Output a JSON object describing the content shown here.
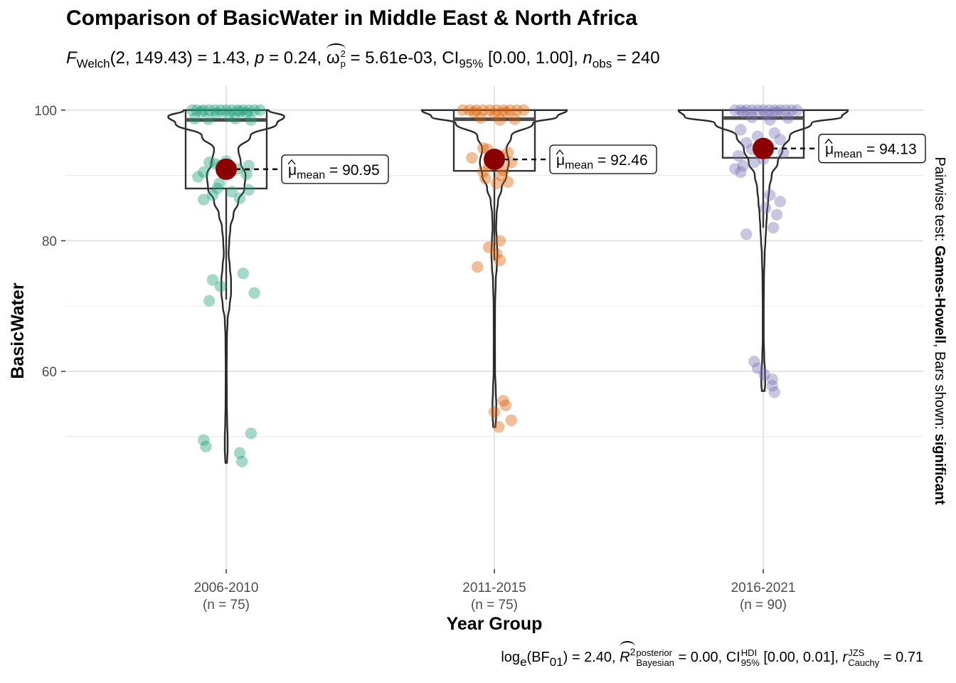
{
  "title": "Comparison of BasicWater in Middle East & North Africa",
  "subtitle": {
    "stat_symbol": "F",
    "stat_sub": "Welch",
    "stat_args": "(2, 149.43)",
    "stat_value": " = 1.43, ",
    "p_symbol": "p",
    "p_value": " = 0.24, ",
    "es_symbol": "ω",
    "es_sup": "2",
    "es_sub": "p",
    "es_value": " = 5.61e-03, CI",
    "ci_sub": "95%",
    "ci_value": " [0.00, 1.00], ",
    "n_symbol": "n",
    "n_sub": "obs",
    "n_value": " = 240"
  },
  "caption": {
    "log_text": "log",
    "log_sub": "e",
    "bf_text": "(BF",
    "bf_sub": "01",
    "bf_value": ") = 2.40, ",
    "r_symbol": "R",
    "r_sup": "2",
    "r_label_top": "posterior",
    "r_label_bottom": "Bayesian",
    "r_value": " = 0.00, CI",
    "ci_top": "HDI",
    "ci_bottom": "95%",
    "ci_value": " [0.00, 0.01], ",
    "cauchy_symbol": "r",
    "cauchy_top": "JZS",
    "cauchy_bottom": "Cauchy",
    "cauchy_value": " = 0.71"
  },
  "side_label": {
    "prefix": "Pairwise test: ",
    "test": "Games-Howell",
    "middle": ", Bars shown: ",
    "shown": "significant"
  },
  "chart_data": {
    "type": "violin-box-scatter",
    "xlabel": "Year Group",
    "ylabel": "BasicWater",
    "ylim": [
      44,
      102
    ],
    "yticks": [
      60,
      80,
      100
    ],
    "grid": true,
    "categories": [
      "2006-2010",
      "2011-2015",
      "2016-2021"
    ],
    "n_labels": [
      "(n = 75)",
      "(n = 75)",
      "(n = 90)"
    ],
    "colors": [
      "#1b9e77",
      "#d95f02",
      "#7570b3"
    ],
    "mean_color": "#8b0000",
    "mean_label_prefix": "μ",
    "mean_label_sub": "mean",
    "groups": [
      {
        "name": "2006-2010",
        "n": 75,
        "mean": 90.95,
        "mean_label": " = 90.95",
        "box": {
          "q1": 88.0,
          "median": 98.5,
          "q3": 100.0,
          "whisker_low": 71.0,
          "whisker_high": 100.0
        },
        "violin": [
          [
            100,
            0.35
          ],
          [
            99,
            0.48
          ],
          [
            98,
            0.42
          ],
          [
            96,
            0.2
          ],
          [
            94,
            0.1
          ],
          [
            92,
            0.12
          ],
          [
            90,
            0.16
          ],
          [
            88,
            0.15
          ],
          [
            86,
            0.1
          ],
          [
            84,
            0.06
          ],
          [
            82,
            0.035
          ],
          [
            80,
            0.025
          ],
          [
            78,
            0.02
          ],
          [
            76,
            0.03
          ],
          [
            74,
            0.04
          ],
          [
            72,
            0.04
          ],
          [
            70,
            0.028
          ],
          [
            68,
            0.012
          ],
          [
            65,
            0.006
          ],
          [
            60,
            0.004
          ],
          [
            55,
            0.005
          ],
          [
            52,
            0.008
          ],
          [
            50,
            0.012
          ],
          [
            48,
            0.012
          ],
          [
            46.5,
            0.008
          ],
          [
            46,
            0.006
          ]
        ],
        "points": [
          [
            100,
            -0.3
          ],
          [
            100,
            -0.26
          ],
          [
            100,
            -0.2
          ],
          [
            100,
            -0.15
          ],
          [
            100,
            -0.1
          ],
          [
            100,
            -0.05
          ],
          [
            100,
            0.0
          ],
          [
            100,
            0.05
          ],
          [
            100,
            0.1
          ],
          [
            100,
            0.15
          ],
          [
            100,
            0.2
          ],
          [
            100,
            0.25
          ],
          [
            100,
            0.3
          ],
          [
            99.8,
            -0.22
          ],
          [
            99.8,
            0.12
          ],
          [
            99.5,
            -0.08
          ],
          [
            99.5,
            0.18
          ],
          [
            99.2,
            0.02
          ],
          [
            98.7,
            -0.28
          ],
          [
            98.7,
            0.08
          ],
          [
            98.6,
            -0.16
          ],
          [
            98.5,
            0.22
          ],
          [
            92.0,
            -0.15
          ],
          [
            91.8,
            -0.1
          ],
          [
            91.5,
            0.2
          ],
          [
            91.5,
            -0.05
          ],
          [
            91.0,
            0.1
          ],
          [
            90.5,
            -0.2
          ],
          [
            90.2,
            0.18
          ],
          [
            89.8,
            -0.25
          ],
          [
            87.8,
            0.2
          ],
          [
            88.0,
            -0.08
          ],
          [
            87.5,
            0.05
          ],
          [
            87.0,
            -0.12
          ],
          [
            86.5,
            0.12
          ],
          [
            86.3,
            -0.2
          ],
          [
            92.2,
            0.0
          ],
          [
            88.8,
            -0.06
          ],
          [
            75.0,
            0.15
          ],
          [
            74.0,
            -0.12
          ],
          [
            73.0,
            -0.05
          ],
          [
            72.0,
            0.25
          ],
          [
            70.8,
            -0.15
          ],
          [
            49.5,
            -0.2
          ],
          [
            48.5,
            -0.18
          ],
          [
            47.5,
            0.12
          ],
          [
            46.2,
            0.14
          ],
          [
            50.5,
            0.22
          ]
        ]
      },
      {
        "name": "2011-2015",
        "n": 75,
        "mean": 92.46,
        "mean_label": " = 92.46",
        "box": {
          "q1": 90.7,
          "median": 98.6,
          "q3": 100.0,
          "whisker_low": 77.0,
          "whisker_high": 100.0
        },
        "violin": [
          [
            100,
            0.6
          ],
          [
            99,
            0.52
          ],
          [
            98,
            0.32
          ],
          [
            96,
            0.14
          ],
          [
            94,
            0.1
          ],
          [
            92,
            0.12
          ],
          [
            90,
            0.1
          ],
          [
            88,
            0.06
          ],
          [
            86,
            0.03
          ],
          [
            84,
            0.018
          ],
          [
            82,
            0.015
          ],
          [
            80,
            0.02
          ],
          [
            78,
            0.025
          ],
          [
            76,
            0.02
          ],
          [
            74,
            0.012
          ],
          [
            70,
            0.006
          ],
          [
            65,
            0.005
          ],
          [
            60,
            0.006
          ],
          [
            57,
            0.012
          ],
          [
            55,
            0.016
          ],
          [
            53,
            0.014
          ],
          [
            51.5,
            0.01
          ]
        ],
        "points": [
          [
            100,
            -0.28
          ],
          [
            100,
            -0.22
          ],
          [
            100,
            -0.16
          ],
          [
            100,
            -0.1
          ],
          [
            100,
            -0.04
          ],
          [
            100,
            0.02
          ],
          [
            100,
            0.08
          ],
          [
            100,
            0.14
          ],
          [
            100,
            0.2
          ],
          [
            100,
            0.26
          ],
          [
            99.7,
            -0.18
          ],
          [
            99.7,
            0.1
          ],
          [
            99.3,
            0.0
          ],
          [
            98.8,
            -0.12
          ],
          [
            98.6,
            0.18
          ],
          [
            98.5,
            0.05
          ],
          [
            94.2,
            -0.1
          ],
          [
            94.0,
            -0.06
          ],
          [
            93.5,
            0.12
          ],
          [
            93.0,
            0.05
          ],
          [
            92.7,
            -0.2
          ],
          [
            92.5,
            0.0
          ],
          [
            92.0,
            0.15
          ],
          [
            91.5,
            -0.05
          ],
          [
            90.8,
            0.08
          ],
          [
            90.5,
            -0.1
          ],
          [
            90.0,
            0.06
          ],
          [
            89.5,
            -0.08
          ],
          [
            89.0,
            0.12
          ],
          [
            88.8,
            0.02
          ],
          [
            80.0,
            0.05
          ],
          [
            79.0,
            -0.05
          ],
          [
            78.0,
            0.02
          ],
          [
            77.0,
            0.05
          ],
          [
            76.0,
            -0.15
          ],
          [
            55.5,
            0.08
          ],
          [
            54.8,
            0.1
          ],
          [
            53.8,
            0.0
          ],
          [
            52.5,
            0.15
          ],
          [
            51.5,
            0.04
          ]
        ]
      },
      {
        "name": "2016-2021",
        "n": 90,
        "mean": 94.13,
        "mean_label": " = 94.13",
        "box": {
          "q1": 92.7,
          "median": 98.8,
          "q3": 100.0,
          "whisker_low": 82.0,
          "whisker_high": 100.0
        },
        "violin": [
          [
            100,
            0.7
          ],
          [
            99,
            0.65
          ],
          [
            98,
            0.4
          ],
          [
            96,
            0.22
          ],
          [
            94,
            0.16
          ],
          [
            92,
            0.12
          ],
          [
            90,
            0.07
          ],
          [
            88,
            0.05
          ],
          [
            86,
            0.04
          ],
          [
            84,
            0.03
          ],
          [
            82,
            0.024
          ],
          [
            80,
            0.018
          ],
          [
            78,
            0.012
          ],
          [
            74,
            0.006
          ],
          [
            70,
            0.004
          ],
          [
            65,
            0.004
          ],
          [
            62,
            0.008
          ],
          [
            60,
            0.015
          ],
          [
            58,
            0.016
          ],
          [
            57,
            0.012
          ]
        ],
        "points": [
          [
            100,
            -0.25
          ],
          [
            100,
            -0.2
          ],
          [
            100,
            -0.15
          ],
          [
            100,
            -0.1
          ],
          [
            100,
            -0.05
          ],
          [
            100,
            0.0
          ],
          [
            100,
            0.05
          ],
          [
            100,
            0.1
          ],
          [
            100,
            0.15
          ],
          [
            100,
            0.2
          ],
          [
            100,
            0.25
          ],
          [
            100,
            0.3
          ],
          [
            99.7,
            -0.18
          ],
          [
            99.7,
            0.12
          ],
          [
            99.3,
            0.02
          ],
          [
            98.9,
            -0.1
          ],
          [
            98.8,
            0.22
          ],
          [
            98.5,
            0.06
          ],
          [
            97.0,
            -0.2
          ],
          [
            96.5,
            0.1
          ],
          [
            96.0,
            -0.05
          ],
          [
            95.5,
            0.15
          ],
          [
            95.0,
            -0.15
          ],
          [
            94.5,
            0.05
          ],
          [
            94.0,
            -0.1
          ],
          [
            93.5,
            0.18
          ],
          [
            93.0,
            -0.22
          ],
          [
            92.5,
            0.0
          ],
          [
            92.0,
            -0.08
          ],
          [
            91.5,
            -0.18
          ],
          [
            91.0,
            -0.25
          ],
          [
            90.5,
            -0.2
          ],
          [
            87.0,
            0.06
          ],
          [
            86.0,
            0.15
          ],
          [
            85.0,
            0.02
          ],
          [
            84.0,
            0.12
          ],
          [
            82.0,
            0.09
          ],
          [
            81.0,
            -0.15
          ],
          [
            61.5,
            -0.08
          ],
          [
            60.5,
            -0.05
          ],
          [
            59.5,
            0.01
          ],
          [
            58.8,
            0.08
          ],
          [
            57.8,
            0.08
          ],
          [
            56.8,
            0.1
          ]
        ]
      }
    ]
  }
}
